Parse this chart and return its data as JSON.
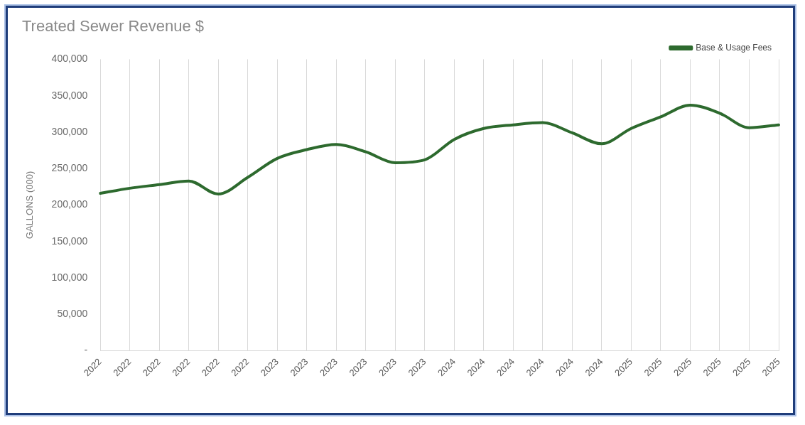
{
  "chart_data": {
    "type": "line",
    "title": "Treated Sewer Revenue $",
    "ylabel": "GALLONS (000)",
    "categories": [
      "2022",
      "2022",
      "2022",
      "2022",
      "2022",
      "2022",
      "2023",
      "2023",
      "2023",
      "2023",
      "2023",
      "2023",
      "2024",
      "2024",
      "2024",
      "2024",
      "2024",
      "2024",
      "2025",
      "2025",
      "2025",
      "2025",
      "2025",
      "2025"
    ],
    "series": [
      {
        "name": "Base & Usage Fees",
        "color": "#2d6a2e",
        "values": [
          216000,
          223000,
          228000,
          233000,
          215000,
          238000,
          264000,
          276000,
          283000,
          273000,
          258000,
          262000,
          290000,
          305000,
          310000,
          313000,
          299000,
          284000,
          305000,
          321000,
          337000,
          326000,
          306000,
          310000
        ]
      }
    ],
    "ylim": [
      0,
      400000
    ],
    "yticks": [
      {
        "value": 0,
        "label": "-"
      },
      {
        "value": 50000,
        "label": "50,000"
      },
      {
        "value": 100000,
        "label": "100,000"
      },
      {
        "value": 150000,
        "label": "150,000"
      },
      {
        "value": 200000,
        "label": "200,000"
      },
      {
        "value": 250000,
        "label": "250,000"
      },
      {
        "value": 300000,
        "label": "300,000"
      },
      {
        "value": 350000,
        "label": "350,000"
      },
      {
        "value": 400000,
        "label": "400,000"
      }
    ],
    "grid": "x",
    "legend": "top right",
    "marker": "none",
    "line_style": "solid"
  }
}
